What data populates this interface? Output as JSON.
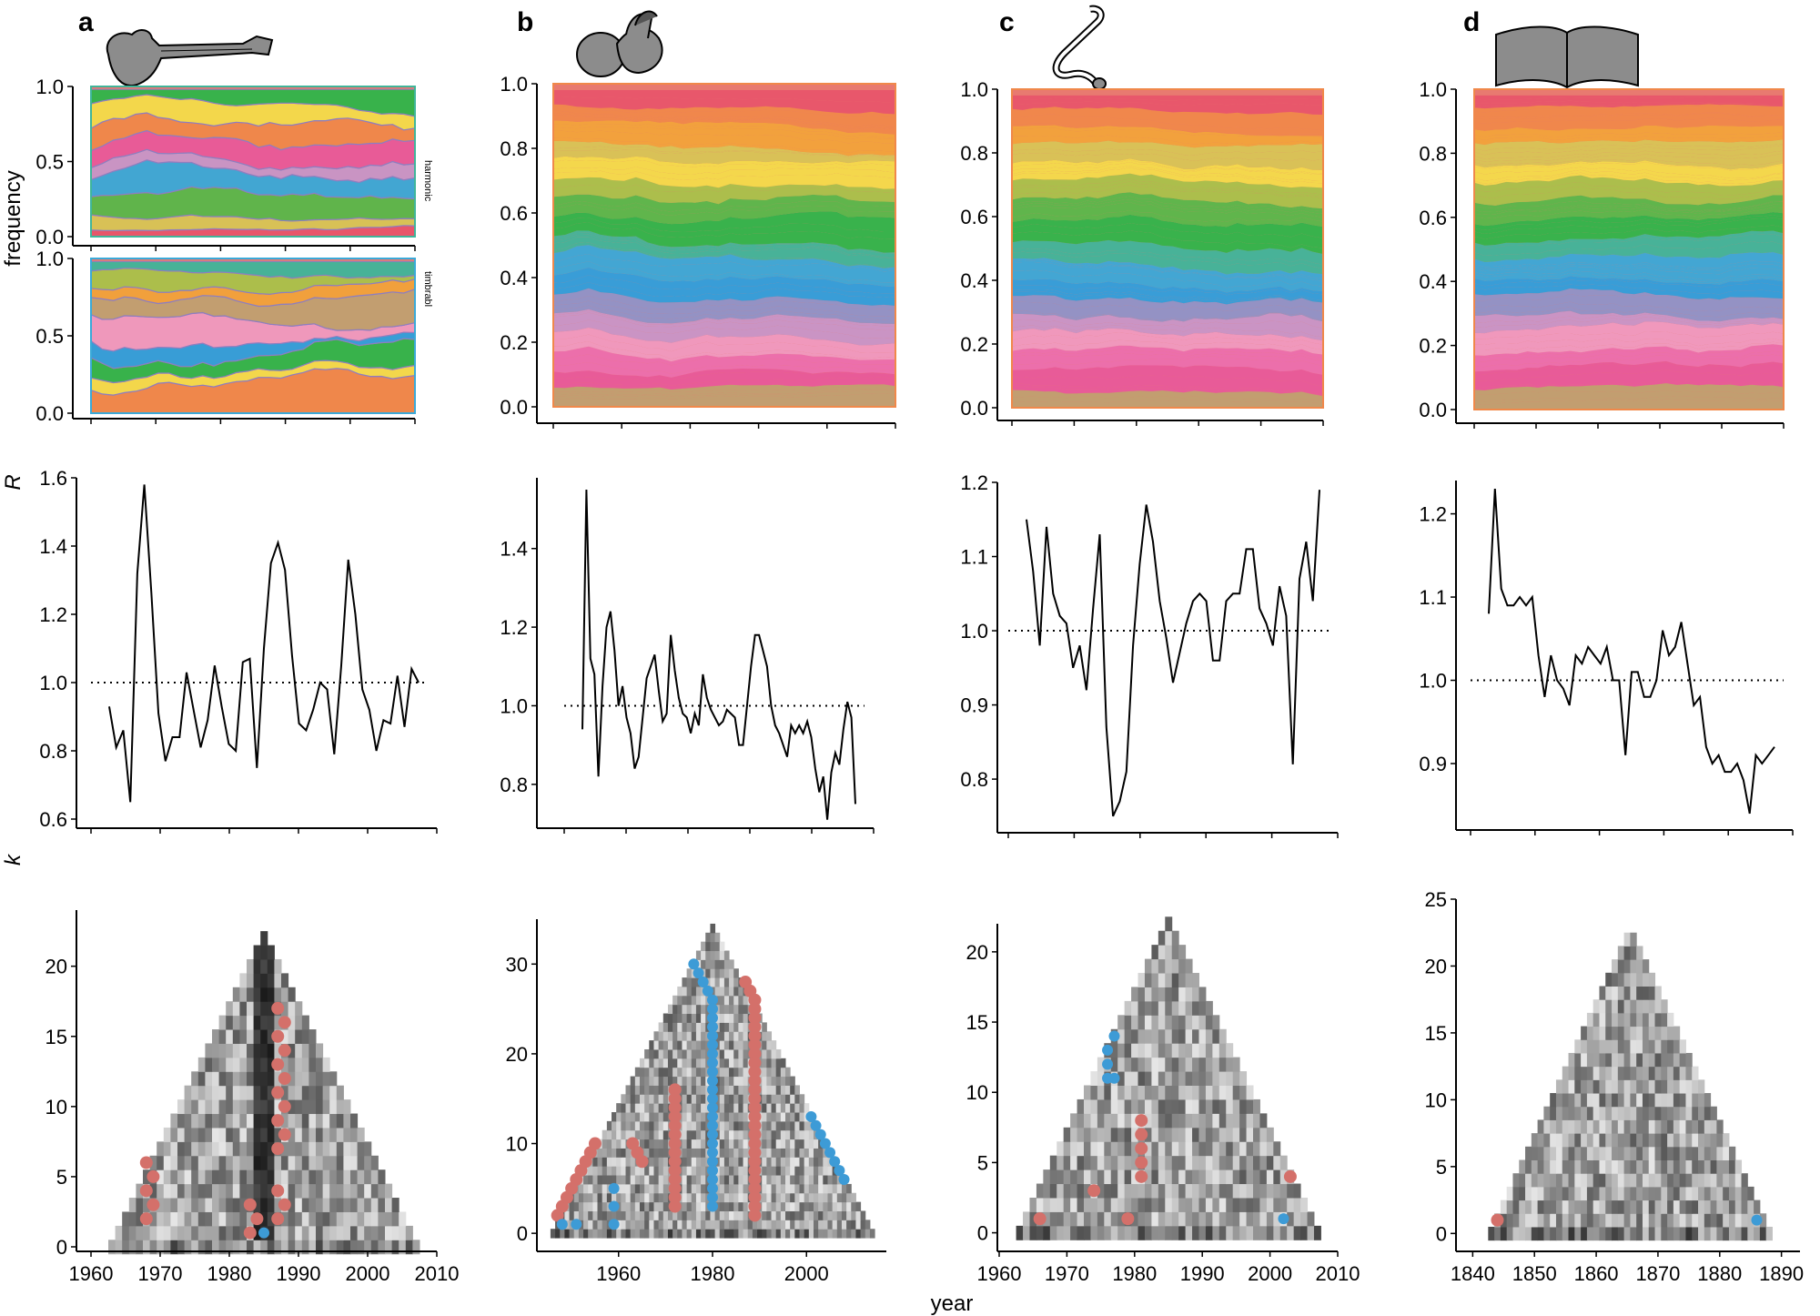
{
  "panel_letters": [
    "a",
    "b",
    "c",
    "d"
  ],
  "icons": [
    "guitar-icon",
    "baby-icon",
    "stethoscope-icon",
    "book-icon"
  ],
  "colors": {
    "stream_palette": [
      "#e8556a",
      "#f0884a",
      "#f2a33a",
      "#d8c555",
      "#f4dc4a",
      "#a9c24a",
      "#59b84a",
      "#2fb54a",
      "#3fb59a",
      "#3aa9d8",
      "#2f9fdc",
      "#8f93c8",
      "#c896c8",
      "#f09ac0",
      "#ec6fae",
      "#e85a9a",
      "#c0a070"
    ],
    "dot_red": "#d4706a",
    "dot_blue": "#3d9bd6",
    "line": "#000000"
  },
  "row_labels": {
    "frequency": "frequency",
    "R": "R",
    "k": "k",
    "year": "year",
    "harmonic": "harmonic",
    "timbral": "timbrabl"
  },
  "chart_data": [
    {
      "type": "area",
      "panel": "a-top",
      "title": "a",
      "ylabel": "frequency",
      "side_label": "harmonic",
      "ylim": [
        0,
        1
      ],
      "yticks": [
        "0.0",
        "0.5",
        "1.0"
      ],
      "series_count": 9
    },
    {
      "type": "area",
      "panel": "a-bottom",
      "side_label": "timbrabl",
      "ylim": [
        0,
        1
      ],
      "yticks": [
        "0.0",
        "0.5",
        "1.0"
      ],
      "series_count": 9
    },
    {
      "type": "area",
      "panel": "b-top",
      "title": "b",
      "ylim": [
        0,
        1
      ],
      "yticks": [
        "0.0",
        "0.2",
        "0.4",
        "0.6",
        "0.8",
        "1.0"
      ],
      "series_count": 60
    },
    {
      "type": "area",
      "panel": "c-top",
      "title": "c",
      "ylim": [
        0,
        1
      ],
      "yticks": [
        "0.0",
        "0.2",
        "0.4",
        "0.6",
        "0.8",
        "1.0"
      ],
      "series_count": 60
    },
    {
      "type": "area",
      "panel": "d-top",
      "title": "d",
      "ylim": [
        0,
        1
      ],
      "yticks": [
        "0.0",
        "0.2",
        "0.4",
        "0.6",
        "0.8",
        "1.0"
      ],
      "series_count": 70
    },
    {
      "type": "line",
      "panel": "a-mid",
      "ylabel": "R",
      "ylim": [
        0.6,
        1.6
      ],
      "yticks": [
        "0.6",
        "0.8",
        "1.0",
        "1.2",
        "1.4",
        "1.6"
      ],
      "reference": 1.0,
      "x": [
        1963,
        1964,
        1965,
        1966,
        1967,
        1968,
        1969,
        1970,
        1971,
        1972,
        1973,
        1974,
        1975,
        1976,
        1977,
        1978,
        1979,
        1980,
        1981,
        1982,
        1983,
        1984,
        1985,
        1986,
        1987,
        1988,
        1989,
        1990,
        1991,
        1992,
        1993,
        1994,
        1995,
        1996,
        1997,
        1998,
        1999,
        2000,
        2001,
        2002,
        2003,
        2004,
        2005,
        2006,
        2007
      ],
      "y": [
        0.93,
        0.81,
        0.86,
        0.65,
        1.32,
        1.58,
        1.26,
        0.91,
        0.77,
        0.84,
        0.84,
        1.03,
        0.92,
        0.81,
        0.89,
        1.05,
        0.93,
        0.82,
        0.8,
        1.06,
        1.07,
        0.75,
        1.1,
        1.35,
        1.41,
        1.33,
        1.08,
        0.88,
        0.86,
        0.92,
        1.0,
        0.98,
        0.79,
        1.05,
        1.36,
        1.2,
        0.98,
        0.92,
        0.8,
        0.89,
        0.88,
        1.02,
        0.87,
        1.04,
        1.0
      ]
    },
    {
      "type": "line",
      "panel": "b-mid",
      "ylim": [
        0.7,
        1.58
      ],
      "yticks": [
        "0.8",
        "1.0",
        "1.2",
        "1.4"
      ],
      "reference": 1.0,
      "x": [
        1946,
        1947,
        1948,
        1949,
        1950,
        1951,
        1952,
        1953,
        1954,
        1955,
        1956,
        1957,
        1958,
        1959,
        1960,
        1961,
        1962,
        1963,
        1964,
        1965,
        1966,
        1967,
        1968,
        1969,
        1970,
        1971,
        1972,
        1973,
        1974,
        1975,
        1976,
        1977,
        1978,
        1979,
        1980,
        1981,
        1982,
        1983,
        1984,
        1985,
        1986,
        1987,
        1988,
        1989,
        1990,
        1991,
        1992,
        1993,
        1994,
        1995,
        1996,
        1997,
        1998,
        1999,
        2000,
        2001,
        2002,
        2003,
        2004,
        2005,
        2006,
        2007,
        2008,
        2009,
        2010,
        2011,
        2012,
        2013,
        2014
      ],
      "y": [
        0.94,
        1.55,
        1.12,
        1.08,
        0.82,
        1.05,
        1.2,
        1.24,
        1.14,
        1.0,
        1.05,
        0.97,
        0.93,
        0.84,
        0.87,
        0.97,
        1.07,
        1.1,
        1.13,
        1.04,
        0.96,
        0.98,
        1.18,
        1.09,
        1.02,
        0.98,
        0.97,
        0.93,
        0.98,
        0.95,
        1.08,
        1.02,
        0.99,
        0.97,
        0.95,
        0.96,
        0.99,
        0.98,
        0.97,
        0.9,
        0.9,
        1.0,
        1.1,
        1.18,
        1.18,
        1.14,
        1.1,
        1.0,
        0.95,
        0.93,
        0.9,
        0.87,
        0.95,
        0.93,
        0.95,
        0.93,
        0.96,
        0.92,
        0.84,
        0.78,
        0.82,
        0.71,
        0.83,
        0.88,
        0.85,
        0.94,
        1.01,
        0.97,
        0.75
      ]
    },
    {
      "type": "line",
      "panel": "c-mid",
      "ylim": [
        0.74,
        1.2
      ],
      "yticks": [
        "0.8",
        "0.9",
        "1.0",
        "1.1",
        "1.2"
      ],
      "reference": 1.0,
      "x": [
        1963,
        1964,
        1965,
        1966,
        1967,
        1968,
        1969,
        1970,
        1971,
        1972,
        1973,
        1974,
        1975,
        1976,
        1977,
        1978,
        1979,
        1980,
        1981,
        1982,
        1983,
        1984,
        1985,
        1986,
        1987,
        1988,
        1989,
        1990,
        1991,
        1992,
        1993,
        1994,
        1995,
        1996,
        1997,
        1998,
        1999,
        2000,
        2001,
        2002,
        2003,
        2004,
        2005,
        2006,
        2007
      ],
      "y": [
        1.15,
        1.08,
        0.98,
        1.14,
        1.05,
        1.02,
        1.01,
        0.95,
        0.98,
        0.92,
        1.03,
        1.13,
        0.87,
        0.75,
        0.77,
        0.81,
        0.98,
        1.09,
        1.17,
        1.12,
        1.04,
        0.99,
        0.93,
        0.97,
        1.01,
        1.04,
        1.05,
        1.04,
        0.96,
        0.96,
        1.04,
        1.05,
        1.05,
        1.11,
        1.11,
        1.03,
        1.01,
        0.98,
        1.06,
        1.02,
        0.82,
        1.07,
        1.12,
        1.04,
        1.19
      ]
    },
    {
      "type": "line",
      "panel": "d-mid",
      "ylim": [
        0.83,
        1.24
      ],
      "yticks": [
        "0.9",
        "1.0",
        "1.1",
        "1.2"
      ],
      "reference": 1.0,
      "x": [
        1843,
        1844,
        1845,
        1846,
        1847,
        1848,
        1849,
        1850,
        1851,
        1852,
        1853,
        1854,
        1855,
        1856,
        1857,
        1858,
        1859,
        1860,
        1861,
        1862,
        1863,
        1864,
        1865,
        1866,
        1867,
        1868,
        1869,
        1870,
        1871,
        1872,
        1873,
        1874,
        1875,
        1876,
        1877,
        1878,
        1879,
        1880,
        1881,
        1882,
        1883,
        1884,
        1885,
        1886,
        1887,
        1888,
        1889
      ],
      "y": [
        1.08,
        1.23,
        1.11,
        1.09,
        1.09,
        1.1,
        1.09,
        1.1,
        1.03,
        0.98,
        1.03,
        1.0,
        0.99,
        0.97,
        1.03,
        1.02,
        1.04,
        1.03,
        1.02,
        1.04,
        1.0,
        1.0,
        0.91,
        1.01,
        1.01,
        0.98,
        0.98,
        1.0,
        1.06,
        1.03,
        1.04,
        1.07,
        1.02,
        0.97,
        0.98,
        0.92,
        0.9,
        0.91,
        0.89,
        0.89,
        0.9,
        0.88,
        0.84,
        0.91,
        0.9,
        0.91,
        0.92
      ]
    },
    {
      "type": "heatmap",
      "panel": "a-bottom-k",
      "ylabel": "k",
      "x_range": [
        1960,
        2010
      ],
      "xticks": [
        "1960",
        "1970",
        "1980",
        "1990",
        "2000",
        "2010"
      ],
      "ylim": [
        0,
        24
      ],
      "yticks": [
        "0",
        "5",
        "10",
        "15",
        "20"
      ],
      "base_years": [
        1963,
        2007
      ],
      "red_points": [
        [
          1968,
          6
        ],
        [
          1969,
          5
        ],
        [
          1968,
          4
        ],
        [
          1969,
          3
        ],
        [
          1968,
          2
        ],
        [
          1983,
          3
        ],
        [
          1984,
          2
        ],
        [
          1983,
          1
        ],
        [
          1987,
          17
        ],
        [
          1988,
          16
        ],
        [
          1987,
          15
        ],
        [
          1988,
          14
        ],
        [
          1987,
          13
        ],
        [
          1988,
          12
        ],
        [
          1987,
          11
        ],
        [
          1988,
          10
        ],
        [
          1987,
          9
        ],
        [
          1988,
          8
        ],
        [
          1987,
          7
        ],
        [
          1987,
          4
        ],
        [
          1988,
          3
        ],
        [
          1987,
          2
        ]
      ],
      "blue_points": [
        [
          1985,
          1
        ]
      ]
    },
    {
      "type": "heatmap",
      "panel": "b-bottom-k",
      "x_range": [
        1943,
        2017
      ],
      "xticks": [
        "1960",
        "1980",
        "2000"
      ],
      "ylim": [
        -1,
        35
      ],
      "yticks": [
        "0",
        "10",
        "20",
        "30"
      ],
      "base_years": [
        1946,
        2014
      ],
      "red_points": [
        [
          1947,
          2
        ],
        [
          1948,
          3
        ],
        [
          1949,
          4
        ],
        [
          1950,
          5
        ],
        [
          1951,
          6
        ],
        [
          1952,
          7
        ],
        [
          1953,
          8
        ],
        [
          1954,
          9
        ],
        [
          1955,
          10
        ],
        [
          1963,
          10
        ],
        [
          1964,
          9
        ],
        [
          1965,
          8
        ],
        [
          1972,
          16
        ],
        [
          1972,
          15
        ],
        [
          1972,
          14
        ],
        [
          1972,
          13
        ],
        [
          1972,
          12
        ],
        [
          1972,
          11
        ],
        [
          1972,
          10
        ],
        [
          1972,
          9
        ],
        [
          1972,
          8
        ],
        [
          1972,
          7
        ],
        [
          1972,
          6
        ],
        [
          1972,
          5
        ],
        [
          1972,
          4
        ],
        [
          1972,
          3
        ],
        [
          1987,
          28
        ],
        [
          1988,
          27
        ],
        [
          1989,
          26
        ],
        [
          1989,
          25
        ],
        [
          1989,
          24
        ],
        [
          1989,
          23
        ],
        [
          1989,
          22
        ],
        [
          1989,
          21
        ],
        [
          1989,
          20
        ],
        [
          1989,
          19
        ],
        [
          1989,
          18
        ],
        [
          1989,
          17
        ],
        [
          1989,
          16
        ],
        [
          1989,
          15
        ],
        [
          1989,
          14
        ],
        [
          1989,
          13
        ],
        [
          1989,
          12
        ],
        [
          1989,
          11
        ],
        [
          1989,
          10
        ],
        [
          1989,
          9
        ],
        [
          1989,
          8
        ],
        [
          1989,
          7
        ],
        [
          1989,
          6
        ],
        [
          1989,
          5
        ],
        [
          1989,
          4
        ],
        [
          1989,
          3
        ],
        [
          1989,
          2
        ]
      ],
      "blue_points": [
        [
          1948,
          1
        ],
        [
          1951,
          1
        ],
        [
          1959,
          5
        ],
        [
          1959,
          3
        ],
        [
          1959,
          1
        ],
        [
          1976,
          30
        ],
        [
          1977,
          29
        ],
        [
          1978,
          28
        ],
        [
          1979,
          27
        ],
        [
          1980,
          26
        ],
        [
          1980,
          25
        ],
        [
          1980,
          24
        ],
        [
          1980,
          23
        ],
        [
          1980,
          22
        ],
        [
          1980,
          21
        ],
        [
          1980,
          20
        ],
        [
          1980,
          19
        ],
        [
          1980,
          18
        ],
        [
          1980,
          17
        ],
        [
          1980,
          16
        ],
        [
          1980,
          15
        ],
        [
          1980,
          14
        ],
        [
          1980,
          13
        ],
        [
          1980,
          12
        ],
        [
          1980,
          11
        ],
        [
          1980,
          10
        ],
        [
          1980,
          9
        ],
        [
          1980,
          8
        ],
        [
          1980,
          7
        ],
        [
          1980,
          6
        ],
        [
          1980,
          5
        ],
        [
          1980,
          4
        ],
        [
          1980,
          3
        ],
        [
          2001,
          13
        ],
        [
          2002,
          12
        ],
        [
          2003,
          11
        ],
        [
          2004,
          10
        ],
        [
          2005,
          9
        ],
        [
          2006,
          8
        ],
        [
          2007,
          7
        ],
        [
          2008,
          6
        ]
      ],
      "base_y": 0
    },
    {
      "type": "heatmap",
      "panel": "c-bottom-k",
      "x_range": [
        1960,
        2010
      ],
      "xticks": [
        "1960",
        "1970",
        "1980",
        "1990",
        "2000",
        "2010"
      ],
      "ylim": [
        -1,
        22
      ],
      "yticks": [
        "0",
        "5",
        "10",
        "15",
        "20"
      ],
      "base_years": [
        1963,
        2007
      ],
      "red_points": [
        [
          1966,
          1
        ],
        [
          1974,
          3
        ],
        [
          1979,
          1
        ],
        [
          1981,
          8
        ],
        [
          1981,
          7
        ],
        [
          1981,
          6
        ],
        [
          1981,
          5
        ],
        [
          1981,
          4
        ],
        [
          2003,
          4
        ]
      ],
      "blue_points": [
        [
          1976,
          13
        ],
        [
          1977,
          14
        ],
        [
          1976,
          12
        ],
        [
          1977,
          11
        ],
        [
          1976,
          11
        ],
        [
          2002,
          1
        ]
      ]
    },
    {
      "type": "heatmap",
      "panel": "d-bottom-k",
      "x_range": [
        1837,
        1893
      ],
      "xticks": [
        "1840",
        "1850",
        "1860",
        "1870",
        "1880",
        "1890"
      ],
      "ylim": [
        -1,
        25
      ],
      "yticks": [
        "0",
        "5",
        "10",
        "15",
        "20",
        "25"
      ],
      "base_years": [
        1843,
        1888
      ],
      "red_points": [
        [
          1844,
          1
        ]
      ],
      "blue_points": [
        [
          1886,
          1
        ]
      ]
    }
  ]
}
